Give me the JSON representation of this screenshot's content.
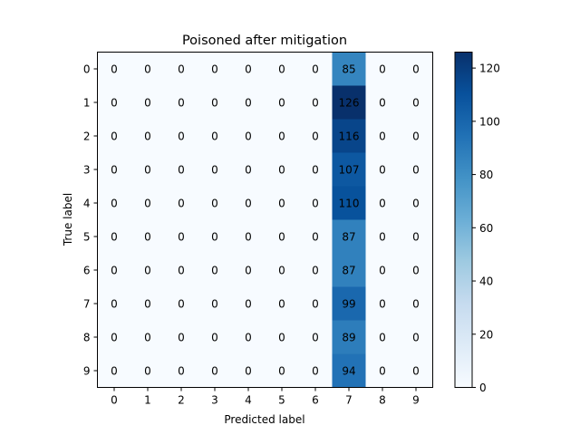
{
  "chart_data": {
    "type": "heatmap",
    "title": "Poisoned after mitigation",
    "xlabel": "Predicted label",
    "ylabel": "True label",
    "x_categories": [
      "0",
      "1",
      "2",
      "3",
      "4",
      "5",
      "6",
      "7",
      "8",
      "9"
    ],
    "y_categories": [
      "0",
      "1",
      "2",
      "3",
      "4",
      "5",
      "6",
      "7",
      "8",
      "9"
    ],
    "values": [
      [
        0,
        0,
        0,
        0,
        0,
        0,
        0,
        85,
        0,
        0
      ],
      [
        0,
        0,
        0,
        0,
        0,
        0,
        0,
        126,
        0,
        0
      ],
      [
        0,
        0,
        0,
        0,
        0,
        0,
        0,
        116,
        0,
        0
      ],
      [
        0,
        0,
        0,
        0,
        0,
        0,
        0,
        107,
        0,
        0
      ],
      [
        0,
        0,
        0,
        0,
        0,
        0,
        0,
        110,
        0,
        0
      ],
      [
        0,
        0,
        0,
        0,
        0,
        0,
        0,
        87,
        0,
        0
      ],
      [
        0,
        0,
        0,
        0,
        0,
        0,
        0,
        87,
        0,
        0
      ],
      [
        0,
        0,
        0,
        0,
        0,
        0,
        0,
        99,
        0,
        0
      ],
      [
        0,
        0,
        0,
        0,
        0,
        0,
        0,
        89,
        0,
        0
      ],
      [
        0,
        0,
        0,
        0,
        0,
        0,
        0,
        94,
        0,
        0
      ]
    ],
    "colormap": "Blues",
    "colorbar": {
      "range": [
        0,
        126
      ],
      "ticks": [
        0,
        20,
        40,
        60,
        80,
        100,
        120
      ],
      "tick_labels": [
        "0",
        "20",
        "40",
        "60",
        "80",
        "100",
        "120"
      ]
    },
    "grid": false
  }
}
